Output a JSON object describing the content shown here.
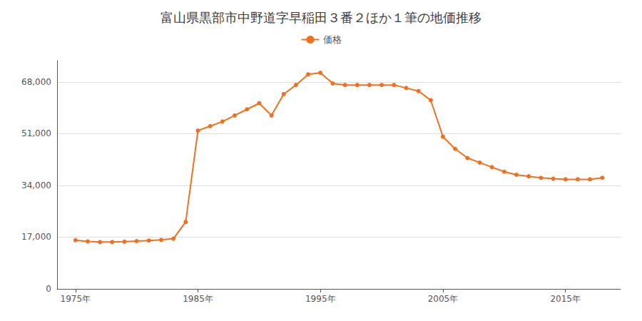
{
  "chart_data": {
    "type": "line",
    "title": "富山県黒部市中野道字早稲田３番２ほか１筆の地価推移",
    "x": [
      1975,
      1976,
      1977,
      1978,
      1979,
      1980,
      1981,
      1982,
      1983,
      1984,
      1985,
      1986,
      1987,
      1988,
      1989,
      1990,
      1991,
      1992,
      1993,
      1994,
      1995,
      1996,
      1997,
      1998,
      1999,
      2000,
      2001,
      2002,
      2003,
      2004,
      2005,
      2006,
      2007,
      2008,
      2009,
      2010,
      2011,
      2012,
      2013,
      2014,
      2015,
      2016,
      2017,
      2018
    ],
    "series": [
      {
        "name": "価格",
        "color": "#f07020",
        "marker": "circle",
        "values": [
          16000,
          15600,
          15400,
          15400,
          15500,
          15700,
          15900,
          16100,
          16500,
          22000,
          52000,
          53500,
          55000,
          57000,
          59000,
          61000,
          57000,
          64000,
          67000,
          70500,
          71000,
          67500,
          67000,
          67000,
          67000,
          67000,
          67000,
          66000,
          65000,
          62000,
          50000,
          46000,
          43000,
          41500,
          40000,
          38500,
          37500,
          37000,
          36500,
          36200,
          36000,
          36000,
          36000,
          36500
        ]
      }
    ],
    "xlim": [
      1973.5,
      2019.5
    ],
    "xticks": [
      {
        "value": 1975,
        "label": "1975年"
      },
      {
        "value": 1985,
        "label": "1985年"
      },
      {
        "value": 1995,
        "label": "1995年"
      },
      {
        "value": 2005,
        "label": "2005年"
      },
      {
        "value": 2015,
        "label": "2015年"
      }
    ],
    "ylim": [
      0,
      75000
    ],
    "yticks": [
      0,
      {
        "value": 17000,
        "label": "17,000"
      },
      {
        "value": 34000,
        "label": "34,000"
      },
      {
        "value": 51000,
        "label": "51,000"
      },
      {
        "value": 68000,
        "label": "68,000"
      }
    ],
    "grid": true,
    "legend": "top"
  }
}
